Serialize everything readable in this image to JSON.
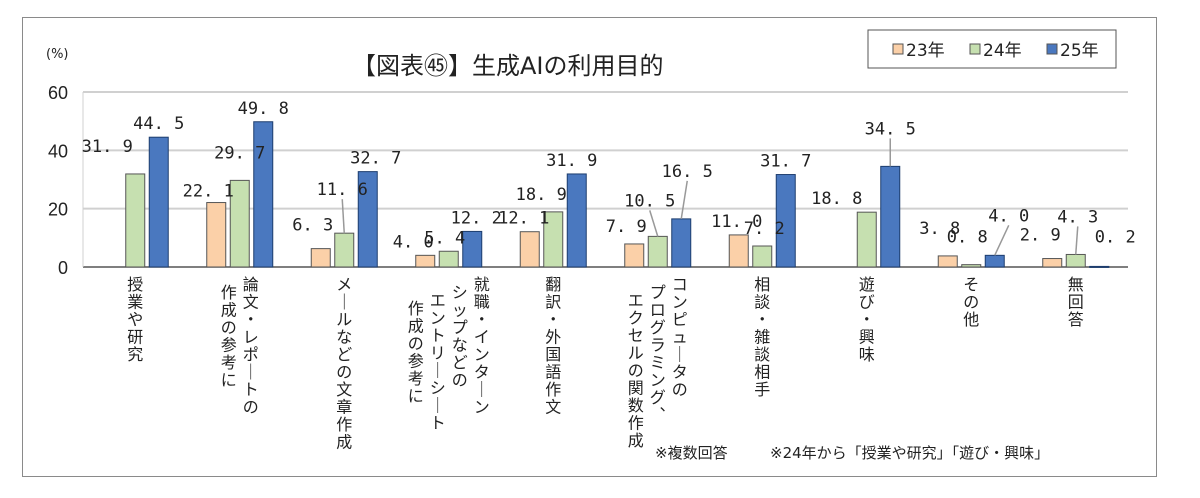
{
  "chart_data": {
    "type": "bar",
    "title": "【図表㊺】生成AIの利用目的",
    "ylabel": "(%)",
    "xlabel": "",
    "ylim": [
      0,
      60
    ],
    "yticks": [
      0,
      20,
      40,
      60
    ],
    "grid": true,
    "legend_position": "top-right",
    "categories": [
      "授業や研究",
      "論文・レポートの\n作成の参考に",
      "メールなどの文章作成",
      "就職・インターン\nシップなどの\nエントリーシート\n作成の参考に",
      "翻訳・外国語作文",
      "コンピュータの\nプログラミング、\nエクセルの関数作成",
      "相談・雑談相手",
      "遊び・興味",
      "その他",
      "無回答"
    ],
    "series": [
      {
        "name": "23年",
        "color": "#fbd0a8",
        "values": [
          null,
          22.1,
          6.3,
          4.0,
          12.1,
          7.9,
          11.0,
          null,
          3.8,
          2.9
        ]
      },
      {
        "name": "24年",
        "color": "#c6e0b0",
        "values": [
          31.9,
          29.7,
          11.6,
          5.4,
          18.9,
          10.5,
          7.2,
          18.8,
          0.8,
          4.3
        ]
      },
      {
        "name": "25年",
        "color": "#4a78bf",
        "values": [
          44.5,
          49.8,
          32.7,
          12.2,
          31.9,
          16.5,
          31.7,
          34.5,
          4.0,
          0.2
        ]
      }
    ],
    "notes": [
      "※複数回答",
      "※24年から「授業や研究」「遊び・興味」"
    ]
  }
}
